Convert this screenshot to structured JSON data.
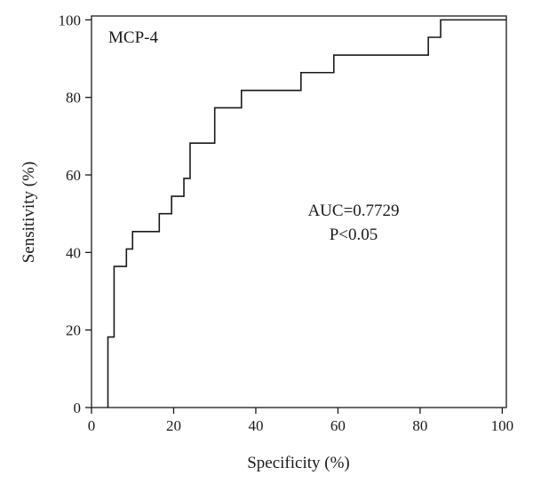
{
  "chart_data": {
    "type": "line",
    "title": "MCP-4",
    "xlabel": "Specificity (%)",
    "ylabel": "Sensitivity (%)",
    "xlim": [
      0,
      101
    ],
    "ylim": [
      0,
      101
    ],
    "xticks": [
      0,
      20,
      40,
      60,
      80,
      100
    ],
    "yticks": [
      0,
      20,
      40,
      60,
      80,
      100
    ],
    "grid": false,
    "legend": "none",
    "annotations": [
      "AUC=0.7729",
      "P<0.05"
    ],
    "line_color": "#1a1a1a",
    "series": [
      {
        "x": [
          4,
          4,
          5.5,
          5.5,
          8.5,
          8.5,
          10,
          10,
          16.5,
          16.5,
          19.5,
          19.5,
          22.5,
          22.5,
          24,
          24,
          30,
          30,
          36.5,
          36.5,
          51,
          51,
          59,
          59,
          82,
          82,
          85,
          85,
          101
        ],
        "y": [
          0,
          18.2,
          18.2,
          36.4,
          36.4,
          40.9,
          40.9,
          45.4,
          45.4,
          50,
          50,
          54.5,
          54.5,
          59.1,
          59.1,
          68.2,
          68.2,
          77.3,
          77.3,
          81.8,
          81.8,
          86.4,
          86.4,
          90.9,
          90.9,
          95.5,
          95.5,
          100,
          100
        ]
      }
    ]
  }
}
